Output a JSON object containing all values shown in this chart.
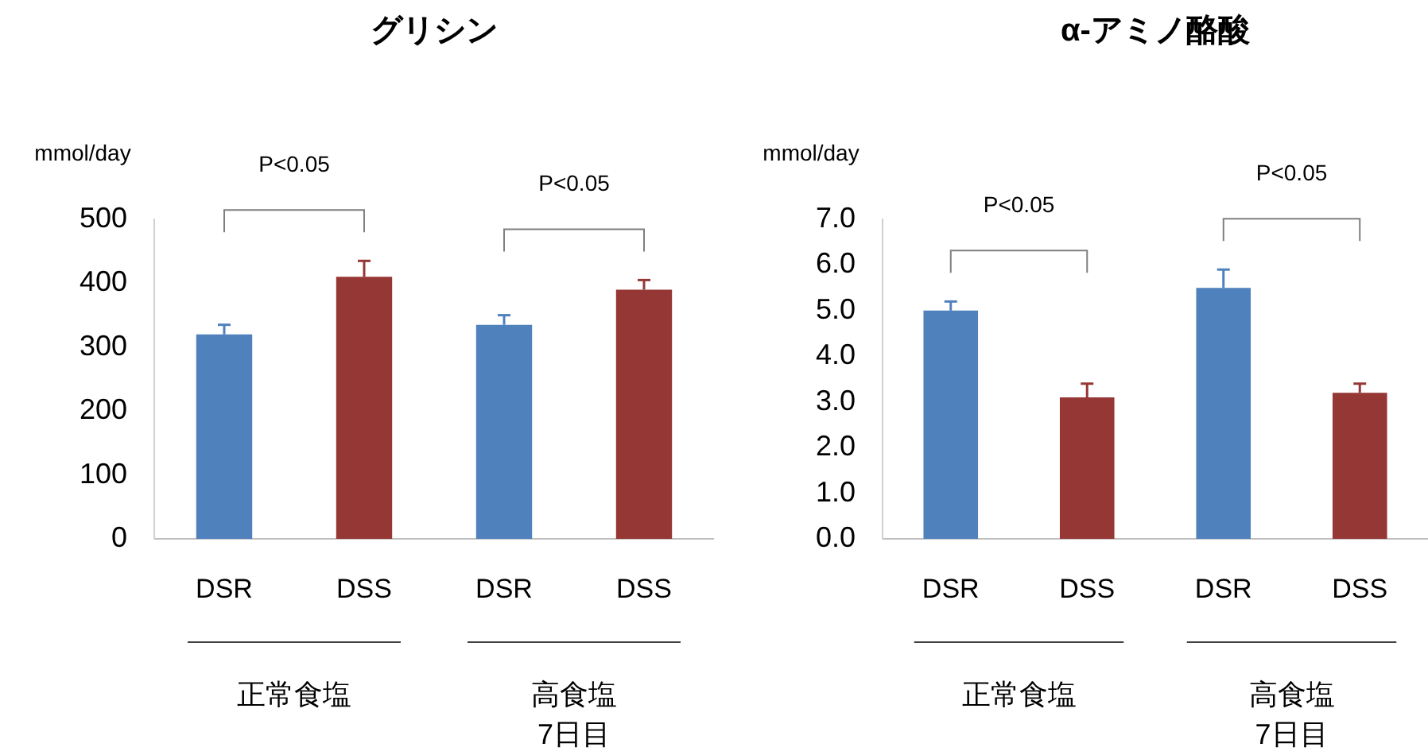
{
  "chart_data": [
    {
      "type": "bar",
      "title": "グリシン",
      "ylabel": "mmol/day",
      "categories": [
        "DSR",
        "DSS",
        "DSR",
        "DSS"
      ],
      "values": [
        320,
        410,
        335,
        390
      ],
      "colors": [
        "#4f81bd",
        "#953735",
        "#4f81bd",
        "#953735"
      ],
      "errors": [
        [
          320,
          335
        ],
        [
          410,
          435
        ],
        [
          335,
          350
        ],
        [
          390,
          405
        ]
      ],
      "ylim": [
        0,
        500
      ],
      "yticks": [
        0,
        100,
        200,
        300,
        400,
        500
      ],
      "annotations": [
        "P<0.05",
        "P<0.05",
        "正常食塩",
        "高食塩\n7日目"
      ]
    },
    {
      "type": "bar",
      "title": "α-アミノ酪酸",
      "ylabel": "mmol/day",
      "categories": [
        "DSR",
        "DSS",
        "DSR",
        "DSS"
      ],
      "values": [
        5.0,
        3.1,
        5.5,
        3.2
      ],
      "colors": [
        "#4f81bd",
        "#953735",
        "#4f81bd",
        "#953735"
      ],
      "errors": [
        [
          5.0,
          5.2
        ],
        [
          3.1,
          3.4
        ],
        [
          5.5,
          5.9
        ],
        [
          3.2,
          3.4
        ]
      ],
      "ylim": [
        0,
        7
      ],
      "yticks": [
        {
          "value": 0,
          "label": "0.0"
        },
        {
          "value": 1,
          "label": "1.0"
        },
        {
          "value": 2,
          "label": "2.0"
        },
        {
          "value": 3,
          "label": "3.0"
        },
        {
          "value": 4,
          "label": "4.0"
        },
        {
          "value": 5,
          "label": "5.0"
        },
        {
          "value": 6,
          "label": "6.0"
        },
        {
          "value": 7,
          "label": "7.0"
        }
      ],
      "annotations": [
        "P<0.05",
        "P<0.05",
        "正常食塩",
        "高食塩\n7日目"
      ]
    }
  ]
}
